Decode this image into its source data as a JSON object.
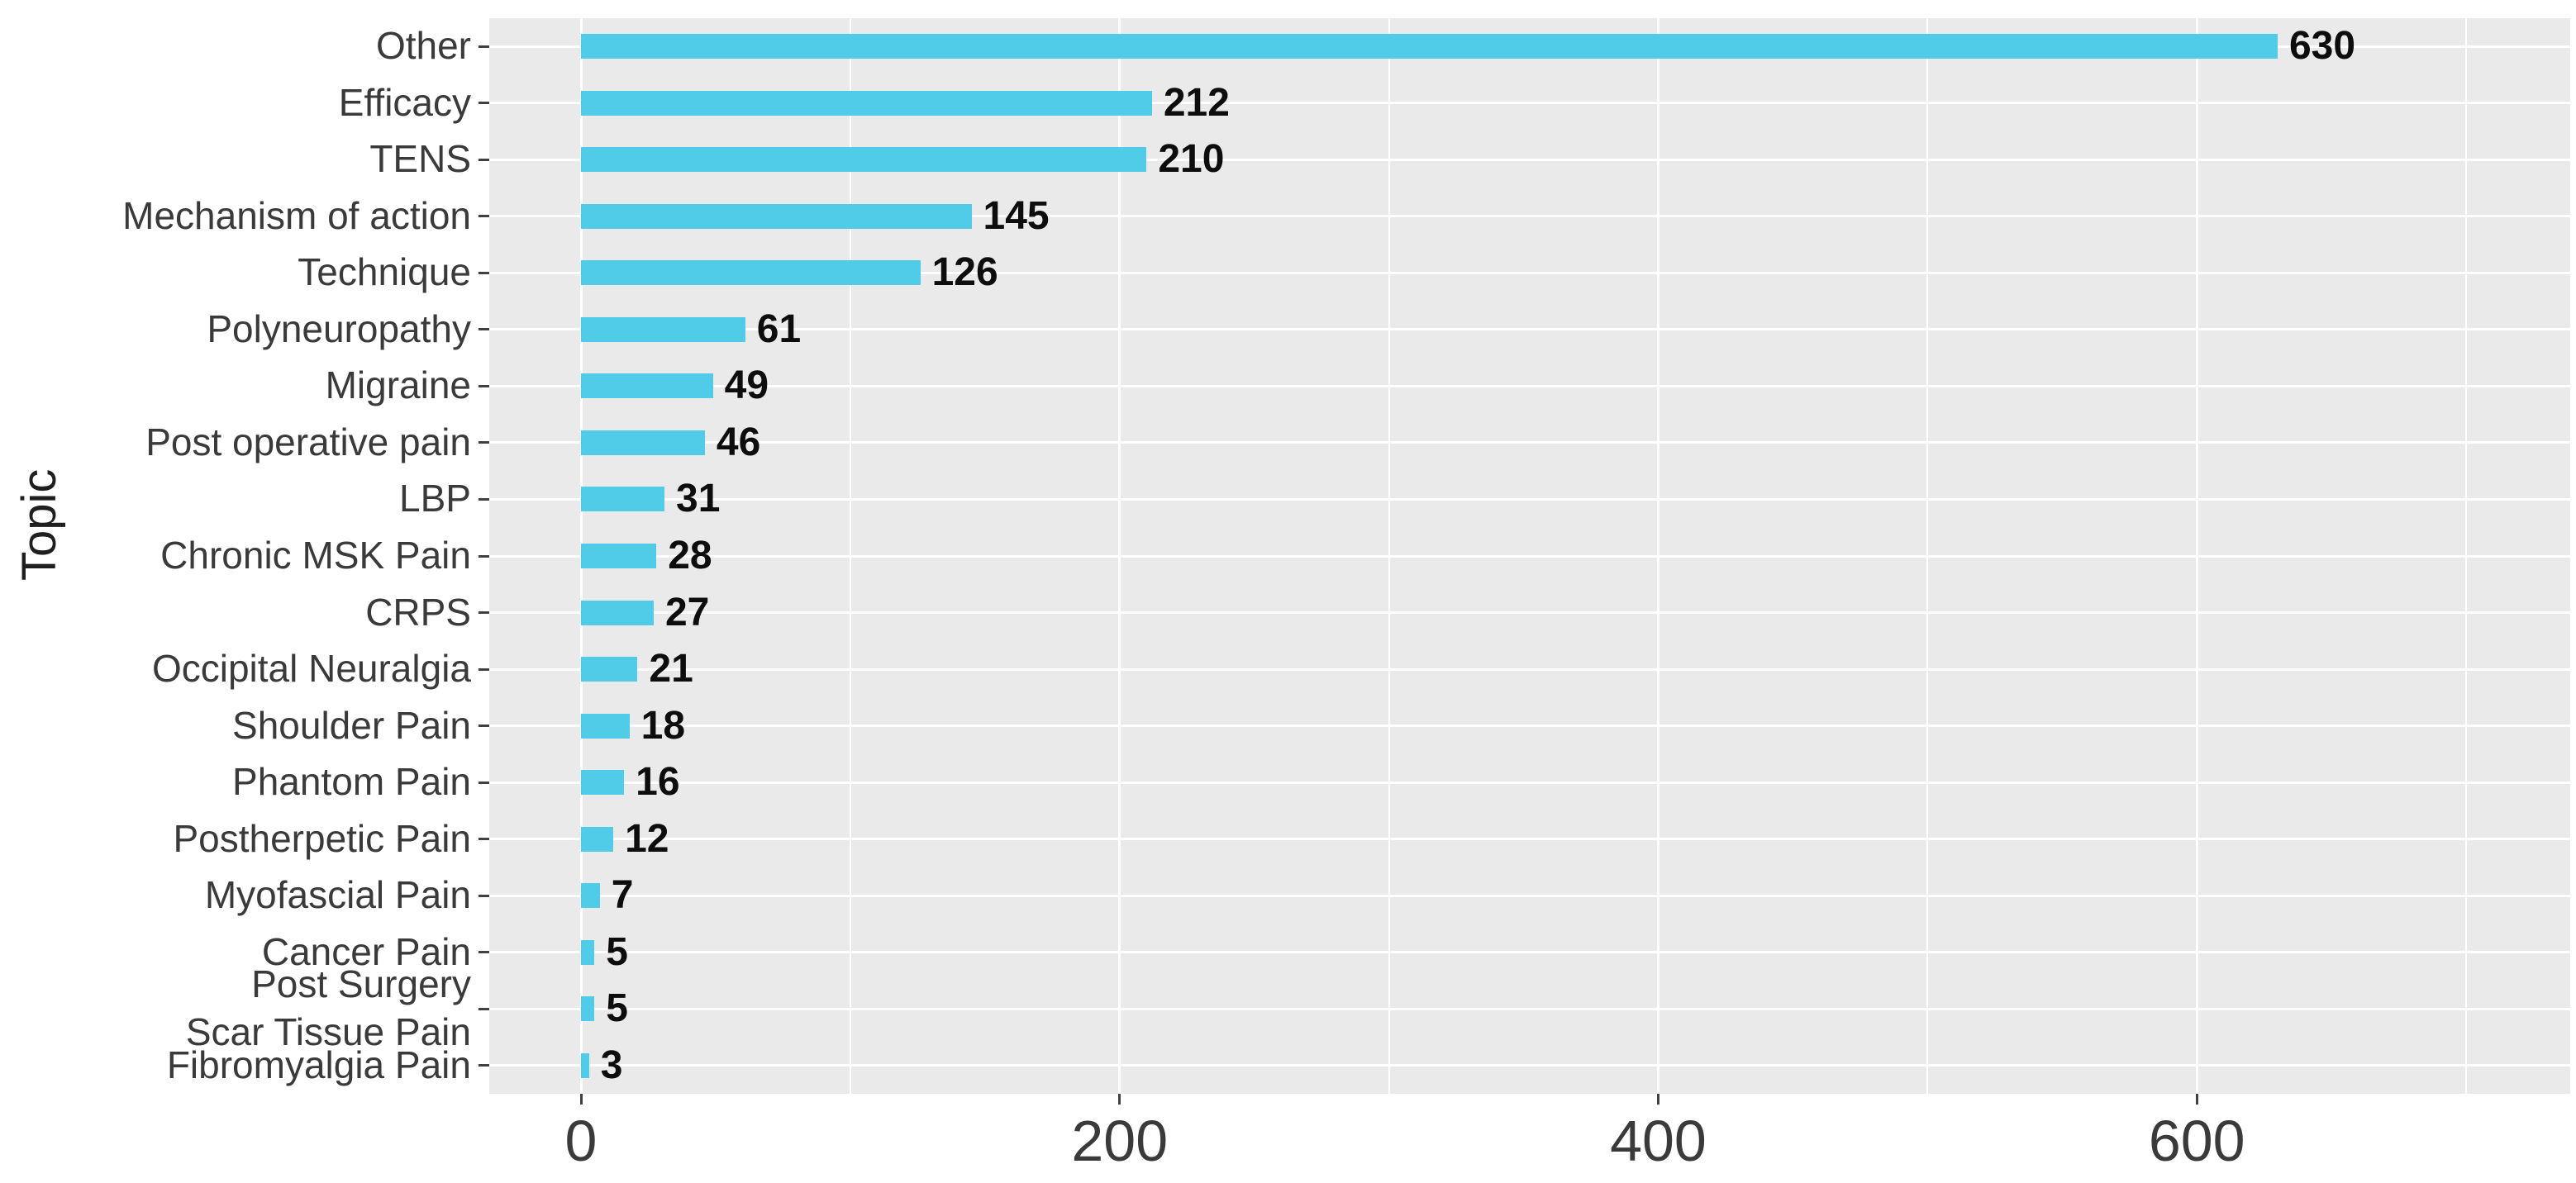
{
  "chart_data": {
    "type": "bar",
    "orientation": "horizontal",
    "title": "",
    "xlabel": "",
    "ylabel": "Topic",
    "categories": [
      "Other",
      "Efficacy",
      "TENS",
      "Mechanism of action",
      "Technique",
      "Polyneuropathy",
      "Migraine",
      "Post operative pain",
      "LBP",
      "Chronic MSK Pain",
      "CRPS",
      "Occipital Neuralgia",
      "Shoulder Pain",
      "Phantom Pain",
      "Postherpetic Pain",
      "Myofascial Pain",
      "Cancer Pain",
      "Post Surgery\nScar Tissue Pain",
      "Fibromyalgia Pain"
    ],
    "values": [
      630,
      212,
      210,
      145,
      126,
      61,
      49,
      46,
      31,
      28,
      27,
      21,
      18,
      16,
      12,
      7,
      5,
      5,
      3
    ],
    "value_labels_shown": true,
    "x_axis": {
      "tick_labels": [
        "0",
        "200",
        "400",
        "600"
      ],
      "ticks": [
        0,
        200,
        400,
        600
      ],
      "minor_ticks": [
        100,
        300,
        500,
        700
      ],
      "xlim": [
        -34,
        739
      ]
    },
    "legend": "none",
    "grid": "on",
    "colors": {
      "bar_fill": "#50CBE8",
      "panel_background": "#EAEAEA",
      "gridline": "#FFFFFF",
      "axis_text": "#3A3A3A",
      "value_text": "#0D0D0D",
      "tick_mark": "#404040"
    }
  }
}
